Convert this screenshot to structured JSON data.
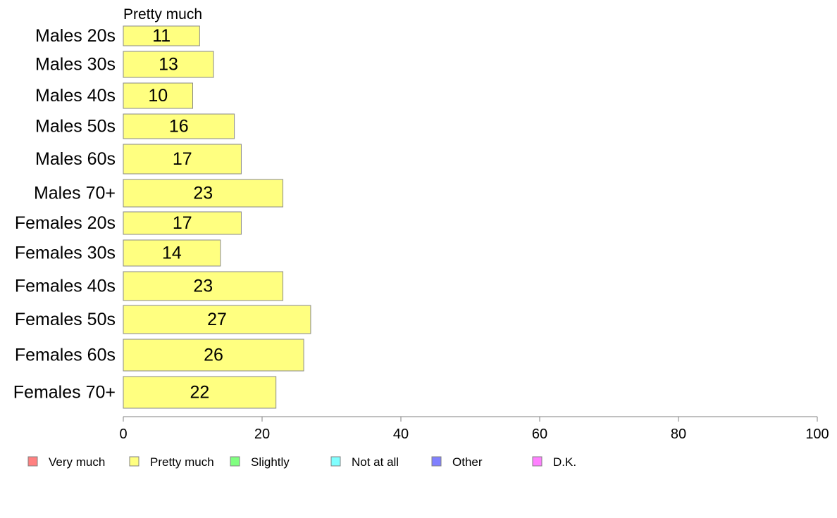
{
  "chart_data": {
    "type": "bar",
    "orientation": "horizontal",
    "series_header": "Pretty much",
    "categories": [
      "Males 20s",
      "Males 30s",
      "Males 40s",
      "Males 50s",
      "Males 60s",
      "Males 70+",
      "Females 20s",
      "Females 30s",
      "Females 40s",
      "Females 50s",
      "Females 60s",
      "Females 70+"
    ],
    "series": [
      {
        "name": "Pretty much",
        "color": "#ffff80",
        "values": [
          11,
          13,
          10,
          16,
          17,
          23,
          17,
          14,
          23,
          27,
          26,
          22
        ]
      }
    ],
    "xlim": [
      0,
      100
    ],
    "xticks": [
      0,
      20,
      40,
      60,
      80,
      100
    ],
    "grid": false,
    "legend_position": "bottom",
    "legend": [
      {
        "label": "Very much",
        "color": "#ff8080"
      },
      {
        "label": "Pretty much",
        "color": "#ffff80"
      },
      {
        "label": "Slightly",
        "color": "#80ff80"
      },
      {
        "label": "Not at all",
        "color": "#80ffff"
      },
      {
        "label": "Other",
        "color": "#8080ff"
      },
      {
        "label": "D.K.",
        "color": "#ff80ff"
      }
    ]
  }
}
